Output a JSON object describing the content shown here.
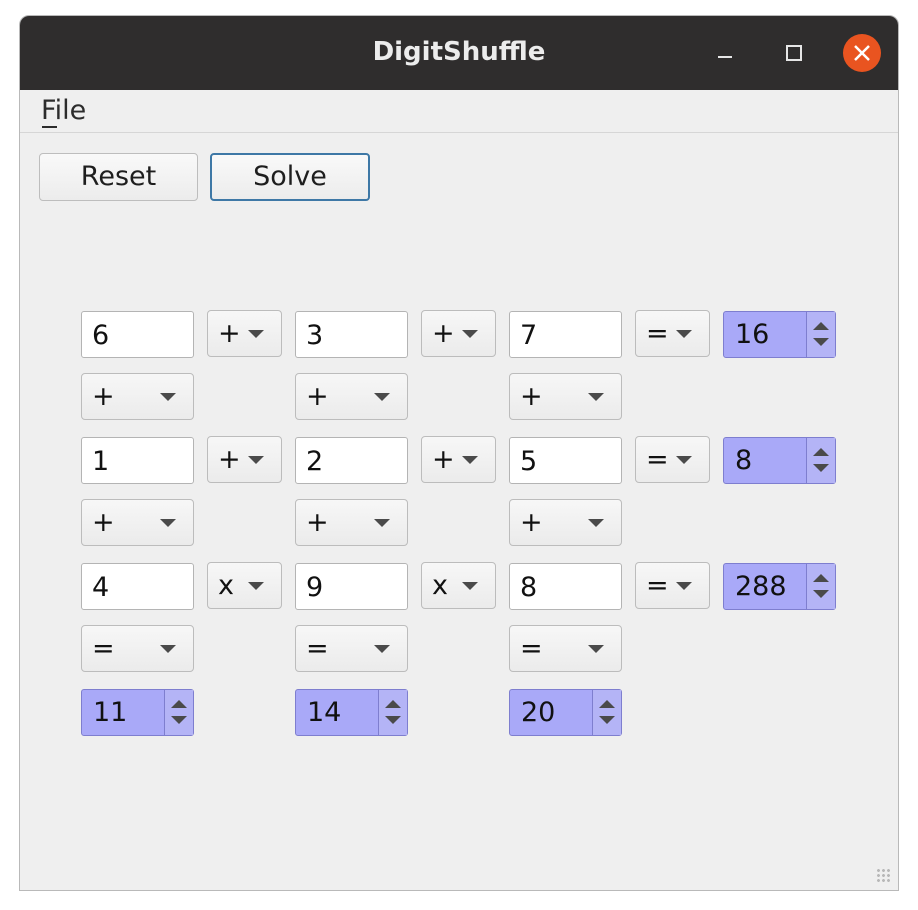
{
  "window": {
    "title": "DigitShuffle"
  },
  "menu": {
    "file_label": "File"
  },
  "toolbar": {
    "reset_label": "Reset",
    "solve_label": "Solve"
  },
  "puzzle": {
    "rows": [
      {
        "cells": [
          "6",
          "3",
          "7"
        ],
        "ops": [
          "+",
          "+"
        ],
        "eq": "=",
        "result": "16"
      },
      {
        "cells": [
          "1",
          "2",
          "5"
        ],
        "ops": [
          "+",
          "+"
        ],
        "eq": "=",
        "result": "8"
      },
      {
        "cells": [
          "4",
          "9",
          "8"
        ],
        "ops": [
          "x",
          "x"
        ],
        "eq": "=",
        "result": "288"
      }
    ],
    "col_ops_row1": [
      "+",
      "+",
      "+"
    ],
    "col_ops_row2": [
      "+",
      "+",
      "+"
    ],
    "col_eq": [
      "=",
      "=",
      "="
    ],
    "col_results": [
      "11",
      "14",
      "20"
    ]
  },
  "colors": {
    "titlebar": "#2f2d2d",
    "close_button": "#e95420",
    "result_fill": "#a9a9f8",
    "focus_border": "#3e78a6"
  }
}
